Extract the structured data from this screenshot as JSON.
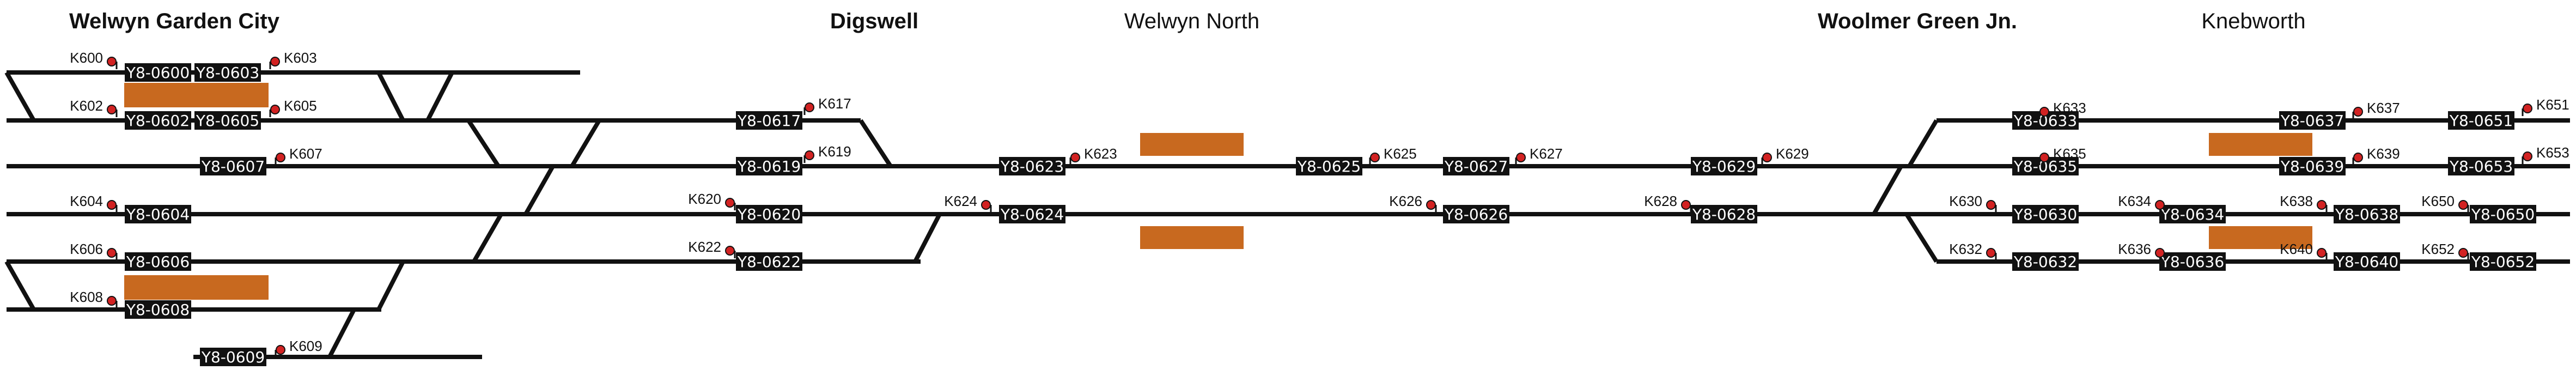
{
  "stations": [
    {
      "id": "welwyn-garden-city",
      "name": "Welwyn Garden City",
      "bold": true
    },
    {
      "id": "digswell",
      "name": "Digswell",
      "bold": true
    },
    {
      "id": "welwyn-north",
      "name": "Welwyn North",
      "bold": false
    },
    {
      "id": "woolmer-green-jn",
      "name": "Woolmer Green Jn.",
      "bold": true
    },
    {
      "id": "knebworth",
      "name": "Knebworth",
      "bold": false
    }
  ],
  "berths": [
    "Y8-0600",
    "Y8-0603",
    "Y8-0602",
    "Y8-0605",
    "Y8-0607",
    "Y8-0604",
    "Y8-0606",
    "Y8-0608",
    "Y8-0609",
    "Y8-0617",
    "Y8-0619",
    "Y8-0620",
    "Y8-0622",
    "Y8-0623",
    "Y8-0624",
    "Y8-0625",
    "Y8-0627",
    "Y8-0626",
    "Y8-0629",
    "Y8-0628",
    "Y8-0633",
    "Y8-0635",
    "Y8-0630",
    "Y8-0632",
    "Y8-0637",
    "Y8-0639",
    "Y8-0634",
    "Y8-0636",
    "Y8-0638",
    "Y8-0640",
    "Y8-0651",
    "Y8-0653",
    "Y8-0650",
    "Y8-0652"
  ],
  "signals": [
    "K600",
    "K603",
    "K602",
    "K605",
    "K607",
    "K604",
    "K606",
    "K608",
    "K609",
    "K617",
    "K619",
    "K620",
    "K622",
    "K623",
    "K624",
    "K625",
    "K627",
    "K626",
    "K629",
    "K628",
    "K633",
    "K635",
    "K630",
    "K632",
    "K637",
    "K639",
    "K634",
    "K636",
    "K638",
    "K640",
    "K651",
    "K653",
    "K650",
    "K652"
  ],
  "colors": {
    "track": "#111111",
    "berth_bg": "#111111",
    "berth_text": "#ffffff",
    "platform": "#c8691f",
    "signal": "#d22222"
  }
}
